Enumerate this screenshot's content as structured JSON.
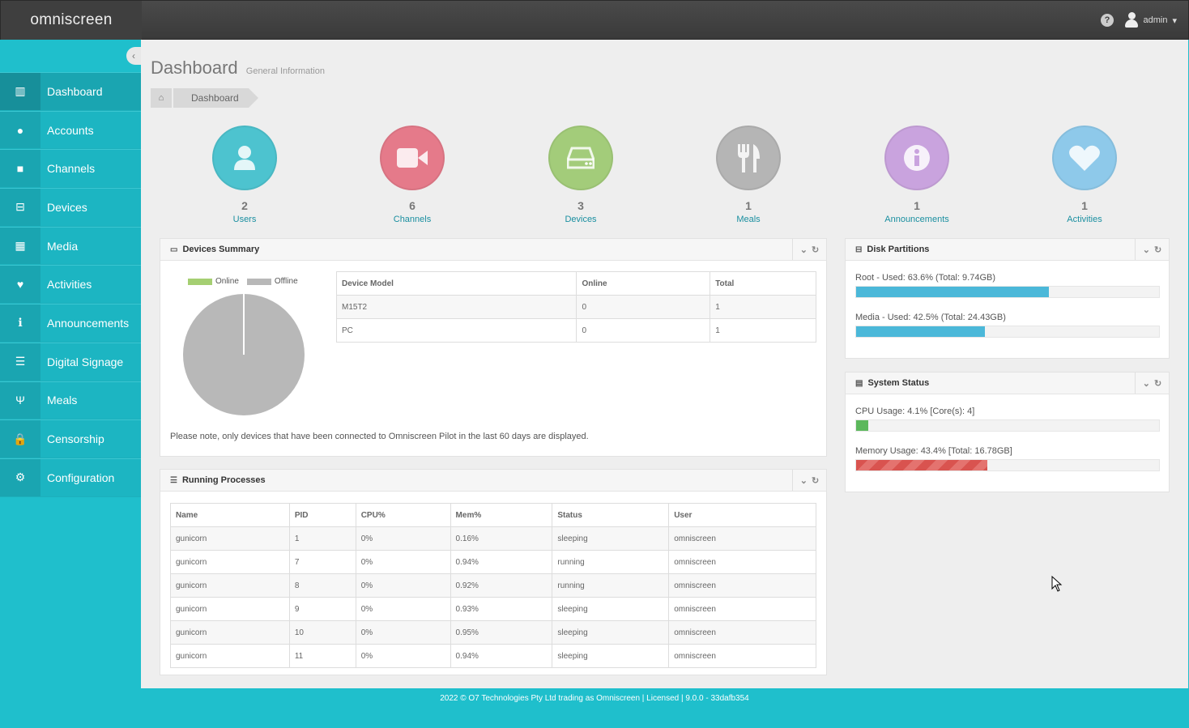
{
  "brand": {
    "logo_text": "omniscreen"
  },
  "topbar": {
    "help_icon": "question-circle-icon",
    "user_name": "admin",
    "caret": "▾"
  },
  "sidebar": {
    "collapse_icon": "‹",
    "items": [
      {
        "label": "Dashboard",
        "icon": "bar-chart-icon",
        "glyph": "▥"
      },
      {
        "label": "Accounts",
        "icon": "user-icon",
        "glyph": "●"
      },
      {
        "label": "Channels",
        "icon": "video-camera-icon",
        "glyph": "■"
      },
      {
        "label": "Devices",
        "icon": "hdd-icon",
        "glyph": "⊟"
      },
      {
        "label": "Media",
        "icon": "film-icon",
        "glyph": "▦"
      },
      {
        "label": "Activities",
        "icon": "heart-icon",
        "glyph": "♥"
      },
      {
        "label": "Announcements",
        "icon": "info-icon",
        "glyph": "ℹ"
      },
      {
        "label": "Digital Signage",
        "icon": "list-icon",
        "glyph": "☰"
      },
      {
        "label": "Meals",
        "icon": "cutlery-icon",
        "glyph": "Ψ"
      },
      {
        "label": "Censorship",
        "icon": "lock-icon",
        "glyph": "🔒"
      },
      {
        "label": "Configuration",
        "icon": "cogs-icon",
        "glyph": "⚙"
      }
    ]
  },
  "page": {
    "title": "Dashboard",
    "subtitle": "General Information"
  },
  "breadcrumb": {
    "home_icon": "home-icon",
    "home_glyph": "⌂",
    "current": "Dashboard"
  },
  "stats": [
    {
      "count": "2",
      "label": "Users",
      "icon": "user-icon",
      "color": "#4dc3cf"
    },
    {
      "count": "6",
      "label": "Channels",
      "icon": "video-camera-icon",
      "color": "#e57a8a"
    },
    {
      "count": "3",
      "label": "Devices",
      "icon": "hdd-icon",
      "color": "#a3cc7a"
    },
    {
      "count": "1",
      "label": "Meals",
      "icon": "cutlery-icon",
      "color": "#b5b5b5"
    },
    {
      "count": "1",
      "label": "Announcements",
      "icon": "info-icon",
      "color": "#c9a3de"
    },
    {
      "count": "1",
      "label": "Activities",
      "icon": "heart-icon",
      "color": "#8ec9ea"
    }
  ],
  "devices_summary": {
    "title": "Devices Summary",
    "legend": [
      {
        "label": "Online",
        "color": "#a5cf72"
      },
      {
        "label": "Offline",
        "color": "#b8b8b8"
      }
    ],
    "chart": {
      "online": 0,
      "offline": 2
    },
    "columns": [
      "Device Model",
      "Online",
      "Total"
    ],
    "rows": [
      [
        "M15T2",
        "0",
        "1"
      ],
      [
        "PC",
        "0",
        "1"
      ]
    ],
    "note": "Please note, only devices that have been connected to Omniscreen Pilot in the last 60 days are displayed."
  },
  "processes": {
    "title": "Running Processes",
    "columns": [
      "Name",
      "PID",
      "CPU%",
      "Mem%",
      "Status",
      "User"
    ],
    "rows": [
      [
        "gunicorn",
        "1",
        "0%",
        "0.16%",
        "sleeping",
        "omniscreen"
      ],
      [
        "gunicorn",
        "7",
        "0%",
        "0.94%",
        "running",
        "omniscreen"
      ],
      [
        "gunicorn",
        "8",
        "0%",
        "0.92%",
        "running",
        "omniscreen"
      ],
      [
        "gunicorn",
        "9",
        "0%",
        "0.93%",
        "sleeping",
        "omniscreen"
      ],
      [
        "gunicorn",
        "10",
        "0%",
        "0.95%",
        "sleeping",
        "omniscreen"
      ],
      [
        "gunicorn",
        "11",
        "0%",
        "0.94%",
        "sleeping",
        "omniscreen"
      ]
    ]
  },
  "disk": {
    "title": "Disk Partitions",
    "items": [
      {
        "label": "Root - Used: 63.6% (Total: 9.74GB)",
        "percent": 63.6,
        "color": "#4bb8d9"
      },
      {
        "label": "Media - Used: 42.5% (Total: 24.43GB)",
        "percent": 42.5,
        "color": "#4bb8d9"
      }
    ]
  },
  "system": {
    "title": "System Status",
    "items": [
      {
        "label": "CPU Usage: 4.1% [Core(s): 4]",
        "percent": 4.1,
        "color": "#5cb85c"
      },
      {
        "label": "Memory Usage: 43.4% [Total: 16.78GB]",
        "percent": 43.4,
        "color": "#d9534f"
      }
    ]
  },
  "footer": {
    "text": "2022 © O7 Technologies Pty Ltd trading as Omniscreen  |  Licensed  |  9.0.0 - 33dafb354"
  }
}
